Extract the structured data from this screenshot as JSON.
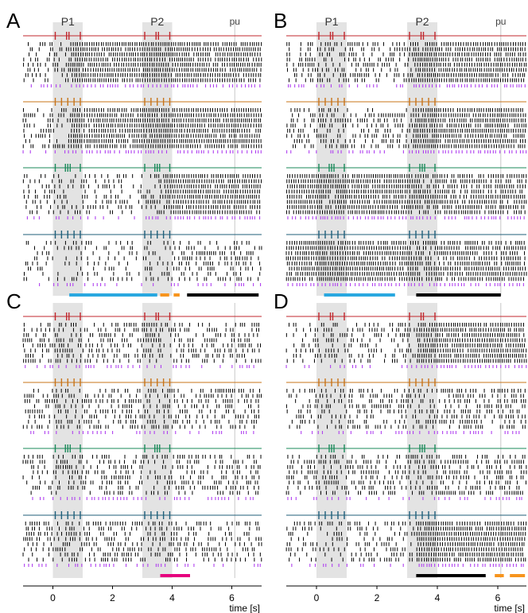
{
  "panels": [
    {
      "letter": "A",
      "show_labels": true,
      "pattern": [
        {
          "before": 0.4,
          "after": 0.95,
          "switch": 0.6
        },
        {
          "before": 0.4,
          "after": 0.95,
          "switch": 0.6
        },
        {
          "before": 0.35,
          "after": 0.95,
          "switch": 3.7
        },
        {
          "before": 0.25,
          "after": 0.45,
          "switch": 3.7
        }
      ],
      "bars": [
        {
          "color": "#29a8e0",
          "x0": 0.55,
          "x1": 3.5
        },
        {
          "color": "#f7941d",
          "x0": 3.6,
          "x1": 3.9
        },
        {
          "color": "#f7941d",
          "x0": 4.05,
          "x1": 4.25
        },
        {
          "color": "#000000",
          "x0": 4.5,
          "x1": 6.9
        }
      ]
    },
    {
      "letter": "B",
      "show_labels": true,
      "pattern": [
        {
          "before": 0.5,
          "after": 0.95,
          "switch": 3.2
        },
        {
          "before": 0.45,
          "after": 0.95,
          "switch": 3.2
        },
        {
          "before": 0.95,
          "after": 0.85,
          "switch": 3.2
        },
        {
          "before": 0.95,
          "after": 0.8,
          "switch": 3.2
        }
      ],
      "bars": [
        {
          "color": "#29a8e0",
          "x0": 0.25,
          "x1": 2.6
        },
        {
          "color": "#000000",
          "x0": 3.3,
          "x1": 6.1
        }
      ]
    },
    {
      "letter": "C",
      "show_labels": false,
      "pattern": [
        {
          "before": 0.45,
          "after": 0.45,
          "switch": 3.5
        },
        {
          "before": 0.45,
          "after": 0.45,
          "switch": 3.5
        },
        {
          "before": 0.45,
          "after": 0.45,
          "switch": 3.5
        },
        {
          "before": 0.45,
          "after": 0.45,
          "switch": 3.5
        }
      ],
      "bars": [
        {
          "color": "#e6007e",
          "x0": 3.6,
          "x1": 4.6
        }
      ]
    },
    {
      "letter": "D",
      "show_labels": false,
      "pattern": [
        {
          "before": 0.4,
          "after": 0.95,
          "switch": 3.3
        },
        {
          "before": 0.4,
          "after": 0.5,
          "switch": 3.3
        },
        {
          "before": 0.4,
          "after": 0.55,
          "switch": 3.3
        },
        {
          "before": 0.35,
          "after": 0.95,
          "switch": 3.3
        }
      ],
      "bars": [
        {
          "color": "#000000",
          "x0": 3.3,
          "x1": 5.6
        },
        {
          "color": "#f7941d",
          "x0": 5.9,
          "x1": 6.2
        },
        {
          "color": "#f7941d",
          "x0": 6.4,
          "x1": 6.9
        }
      ]
    }
  ],
  "labels": {
    "p1": "P1",
    "p2": "P2",
    "pu": "pu"
  },
  "stimulus_colors": [
    "#c1272d",
    "#c8741a",
    "#1a8a5a",
    "#1f5f7a"
  ],
  "spike_color": "#000000",
  "readout_color": "#b040f0",
  "shading_color": "#e3e3e3",
  "pu_line_color": "#c8c8c8",
  "time_window": {
    "p1": [
      0,
      1
    ],
    "p2": [
      3,
      4
    ],
    "pu": 6.1
  },
  "x_axis": {
    "ticks": [
      0,
      2,
      4,
      6
    ],
    "tick_labels": [
      "0",
      "2",
      "4",
      "6"
    ],
    "label": "time [s]",
    "range": [
      -1,
      7
    ]
  }
}
